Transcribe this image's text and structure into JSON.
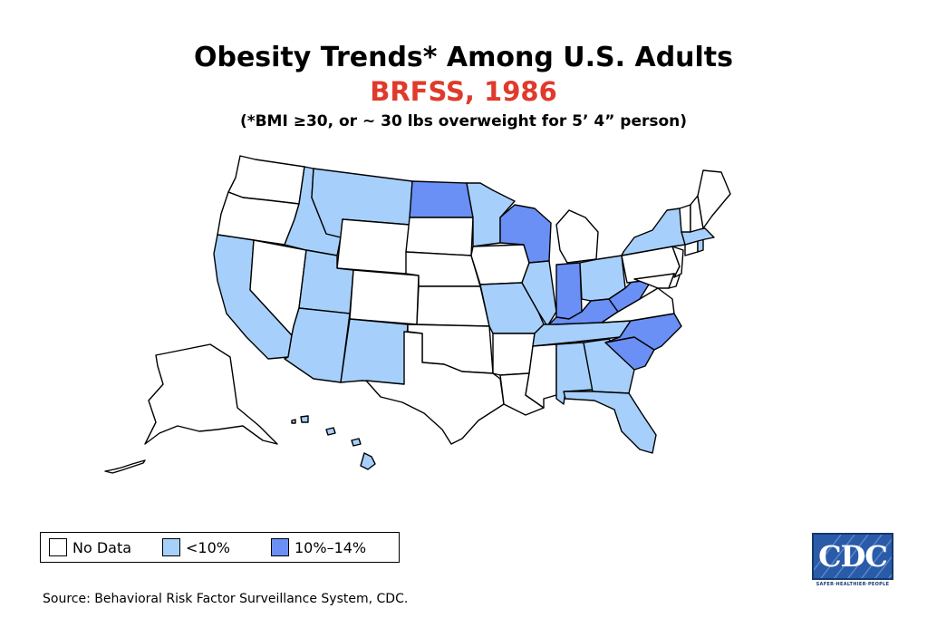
{
  "title": "Obesity Trends* Among U.S. Adults",
  "subtitle": "BRFSS, 1986",
  "note": "(*BMI ≥30, or ~ 30 lbs overweight for 5’ 4” person)",
  "legend": {
    "items": [
      {
        "label": "No Data",
        "color": "#ffffff"
      },
      {
        "label": "<10%",
        "color": "#a6d0fb"
      },
      {
        "label": "10%–14%",
        "color": "#6a8ff5"
      }
    ]
  },
  "source": "Source: Behavioral Risk Factor Surveillance System, CDC.",
  "logo": {
    "text": "CDC",
    "tagline": "SAFER·HEALTHIER·PEOPLE"
  },
  "categories": {
    "no_data": [
      "WA",
      "OR",
      "NV",
      "WY",
      "SD",
      "NE",
      "CO",
      "KS",
      "OK",
      "TX",
      "AR",
      "LA",
      "MS",
      "IA",
      "MI",
      "PA",
      "NJ",
      "MD",
      "DE",
      "VA",
      "VT",
      "NH",
      "ME",
      "CT",
      "AK"
    ],
    "lt10": [
      "CA",
      "ID",
      "MT",
      "UT",
      "AZ",
      "NM",
      "MN",
      "MO",
      "IL",
      "OH",
      "TN",
      "AL",
      "GA",
      "FL",
      "NY",
      "MA",
      "RI",
      "HI"
    ],
    "p10_14": [
      "ND",
      "WI",
      "IN",
      "KY",
      "WV",
      "NC",
      "SC"
    ]
  }
}
